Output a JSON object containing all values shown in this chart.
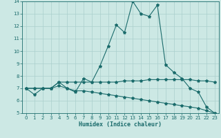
{
  "xlabel": "Humidex (Indice chaleur)",
  "bg_color": "#cce8e4",
  "grid_color": "#aacfcc",
  "line_color": "#1a6b6b",
  "xlim": [
    -0.5,
    23.5
  ],
  "ylim": [
    5,
    14
  ],
  "xticks": [
    0,
    1,
    2,
    3,
    4,
    5,
    6,
    7,
    8,
    9,
    10,
    11,
    12,
    13,
    14,
    15,
    16,
    17,
    18,
    19,
    20,
    21,
    22,
    23
  ],
  "yticks": [
    5,
    6,
    7,
    8,
    9,
    10,
    11,
    12,
    13,
    14
  ],
  "line1_x": [
    0,
    1,
    2,
    3,
    4,
    5,
    6,
    7,
    8,
    9,
    10,
    11,
    12,
    13,
    14,
    15,
    16,
    17,
    18,
    19,
    20,
    21,
    22,
    23
  ],
  "line1_y": [
    7.0,
    6.5,
    7.0,
    7.0,
    7.5,
    7.0,
    6.7,
    7.8,
    7.5,
    8.8,
    10.4,
    12.1,
    11.5,
    14.0,
    13.0,
    12.8,
    13.7,
    8.9,
    8.3,
    7.8,
    7.0,
    6.7,
    5.5,
    5.0
  ],
  "line2_x": [
    0,
    1,
    2,
    3,
    4,
    5,
    6,
    7,
    8,
    9,
    10,
    11,
    12,
    13,
    14,
    15,
    16,
    17,
    18,
    19,
    20,
    21,
    22,
    23
  ],
  "line2_y": [
    7.0,
    7.0,
    7.0,
    7.0,
    7.5,
    7.5,
    7.5,
    7.5,
    7.5,
    7.5,
    7.5,
    7.5,
    7.6,
    7.6,
    7.6,
    7.7,
    7.7,
    7.7,
    7.7,
    7.7,
    7.7,
    7.6,
    7.6,
    7.5
  ],
  "line3_x": [
    0,
    1,
    2,
    3,
    4,
    5,
    6,
    7,
    8,
    9,
    10,
    11,
    12,
    13,
    14,
    15,
    16,
    17,
    18,
    19,
    20,
    21,
    22,
    23
  ],
  "line3_y": [
    7.0,
    7.0,
    7.0,
    7.0,
    7.2,
    7.0,
    6.8,
    6.8,
    6.7,
    6.6,
    6.5,
    6.4,
    6.3,
    6.2,
    6.1,
    6.0,
    5.9,
    5.8,
    5.7,
    5.6,
    5.5,
    5.4,
    5.2,
    5.0
  ]
}
